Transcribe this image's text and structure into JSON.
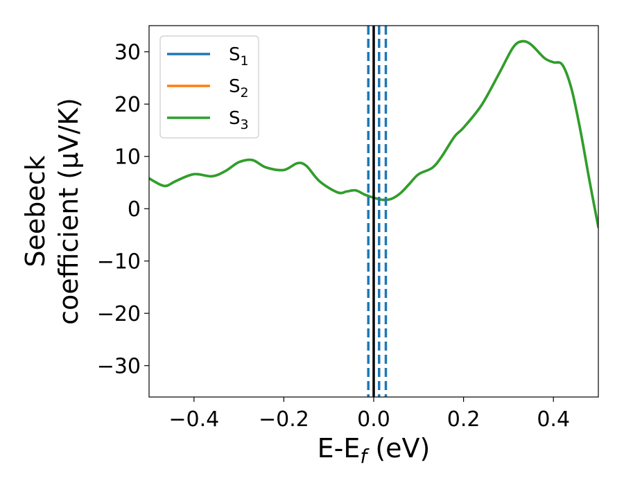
{
  "chart_data": {
    "type": "line",
    "xlabel": "E-E",
    "xlabel_sub": "f",
    "xlabel_unit": " (eV)",
    "ylabel_line1": "Seebeck",
    "ylabel_line2": "coefficient  (μV/K)",
    "xlim": [
      -0.5,
      0.5
    ],
    "ylim": [
      -36,
      35
    ],
    "x_ticks": [
      -0.4,
      -0.2,
      0.0,
      0.2,
      0.4
    ],
    "x_tick_labels": [
      "−0.4",
      "−0.2",
      "0.0",
      "0.2",
      "0.4"
    ],
    "y_ticks": [
      30,
      20,
      10,
      0,
      -10,
      -20,
      -30
    ],
    "y_tick_labels": [
      "30",
      "20",
      "10",
      "0",
      "−10",
      "−20",
      "−30"
    ],
    "grid": false,
    "legend_position": "top-left",
    "x": [
      -0.5,
      -0.475,
      -0.46,
      -0.44,
      -0.4,
      -0.36,
      -0.33,
      -0.3,
      -0.27,
      -0.24,
      -0.2,
      -0.17,
      -0.15,
      -0.12,
      -0.08,
      -0.06,
      -0.04,
      -0.02,
      0.0,
      0.02,
      0.04,
      0.06,
      0.08,
      0.1,
      0.13,
      0.15,
      0.18,
      0.2,
      0.24,
      0.28,
      0.31,
      0.33,
      0.35,
      0.38,
      0.4,
      0.42,
      0.44,
      0.46,
      0.48,
      0.5
    ],
    "series": [
      {
        "name": "S",
        "sub": "1",
        "color": "#1f77b4",
        "values": [
          5.8,
          4.6,
          4.4,
          5.3,
          6.6,
          6.2,
          7.2,
          8.9,
          9.3,
          7.9,
          7.4,
          8.7,
          8.2,
          5.2,
          3.1,
          3.3,
          3.5,
          2.7,
          2.1,
          1.7,
          1.9,
          3.0,
          4.8,
          6.6,
          7.8,
          9.8,
          13.8,
          15.5,
          19.8,
          26.0,
          30.8,
          32.0,
          31.4,
          28.8,
          28.0,
          27.5,
          23.0,
          15.0,
          5.5,
          -3.5
        ]
      },
      {
        "name": "S",
        "sub": "2",
        "color": "#ff7f0e",
        "values": [
          5.8,
          4.6,
          4.4,
          5.3,
          6.6,
          6.2,
          7.2,
          8.9,
          9.3,
          7.9,
          7.4,
          8.7,
          8.2,
          5.2,
          3.1,
          3.3,
          3.5,
          2.7,
          2.1,
          1.7,
          1.9,
          3.0,
          4.8,
          6.6,
          7.8,
          9.8,
          13.8,
          15.5,
          19.8,
          26.0,
          30.8,
          32.0,
          31.4,
          28.8,
          28.0,
          27.5,
          23.0,
          15.0,
          5.5,
          -3.5
        ]
      },
      {
        "name": "S",
        "sub": "3",
        "color": "#2ca02c",
        "values": [
          5.8,
          4.6,
          4.4,
          5.3,
          6.6,
          6.2,
          7.2,
          8.9,
          9.3,
          7.9,
          7.4,
          8.7,
          8.2,
          5.2,
          3.1,
          3.3,
          3.5,
          2.7,
          2.1,
          1.7,
          1.9,
          3.0,
          4.8,
          6.6,
          7.8,
          9.8,
          13.8,
          15.5,
          19.8,
          26.0,
          30.8,
          32.0,
          31.4,
          28.8,
          28.0,
          27.5,
          23.0,
          15.0,
          5.5,
          -3.5
        ]
      }
    ],
    "vlines": [
      {
        "x": 0.0,
        "color": "#000000",
        "style": "solid"
      },
      {
        "x": -0.012,
        "color": "#1f77b4",
        "style": "dashed"
      },
      {
        "x": 0.012,
        "color": "#1f77b4",
        "style": "dashed"
      },
      {
        "x": 0.027,
        "color": "#1f77b4",
        "style": "dashed"
      }
    ]
  }
}
